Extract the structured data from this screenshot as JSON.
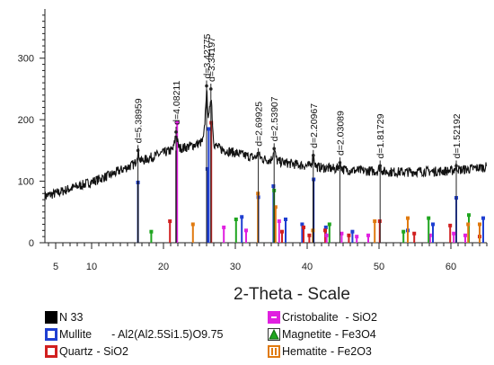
{
  "chart_data": {
    "type": "line",
    "title": "",
    "xlabel": "2-Theta - Scale",
    "ylabel": "",
    "xlim": [
      3.5,
      65
    ],
    "ylim": [
      0,
      380
    ],
    "x_ticks": [
      5,
      10,
      20,
      30,
      40,
      50,
      60
    ],
    "y_ticks": [
      0,
      100,
      200,
      300
    ],
    "grid": false,
    "legend_position": "bottom",
    "pattern_name": "N 33",
    "pattern_profile": [
      [
        3.5,
        76
      ],
      [
        5,
        80
      ],
      [
        7,
        88
      ],
      [
        9,
        95
      ],
      [
        11,
        103
      ],
      [
        13,
        112
      ],
      [
        15,
        123
      ],
      [
        17,
        133
      ],
      [
        19,
        142
      ],
      [
        21,
        150
      ],
      [
        22,
        153
      ],
      [
        23,
        155
      ],
      [
        24,
        158
      ],
      [
        25,
        162
      ],
      [
        26,
        168
      ],
      [
        27,
        160
      ],
      [
        28,
        152
      ],
      [
        30,
        146
      ],
      [
        32,
        140
      ],
      [
        34,
        136
      ],
      [
        36,
        132
      ],
      [
        38,
        128
      ],
      [
        40,
        125
      ],
      [
        42,
        122
      ],
      [
        44,
        120
      ],
      [
        46,
        118
      ],
      [
        48,
        117
      ],
      [
        50,
        116
      ],
      [
        52,
        115
      ],
      [
        54,
        115
      ],
      [
        56,
        116
      ],
      [
        58,
        116
      ],
      [
        60,
        117
      ],
      [
        62,
        119
      ],
      [
        64,
        122
      ],
      [
        65,
        123
      ]
    ],
    "peaks": [
      {
        "two_theta": 16.45,
        "intensity": 150,
        "d": "d=5.38959"
      },
      {
        "two_theta": 21.75,
        "intensity": 180,
        "d": "d=4.08211"
      },
      {
        "two_theta": 26.0,
        "intensity": 255,
        "d": "d=3.42775"
      },
      {
        "two_theta": 26.6,
        "intensity": 250,
        "d": "d=3.34197"
      },
      {
        "two_theta": 33.2,
        "intensity": 145,
        "d": "d=2.69925"
      },
      {
        "two_theta": 35.4,
        "intensity": 153,
        "d": "d=2.53907"
      },
      {
        "two_theta": 40.85,
        "intensity": 142,
        "d": "d=2.20967"
      },
      {
        "two_theta": 44.55,
        "intensity": 130,
        "d": "d=2.03089"
      },
      {
        "two_theta": 50.15,
        "intensity": 125,
        "d": "d=1.81729"
      },
      {
        "two_theta": 60.75,
        "intensity": 125,
        "d": "d=1.52192"
      }
    ],
    "reference_lines": [
      {
        "phase": "Mullite",
        "color": "#1f3fd1",
        "sticks": [
          [
            16.45,
            98
          ],
          [
            26.1,
            120
          ],
          [
            26.3,
            185
          ],
          [
            30.9,
            42
          ],
          [
            33.2,
            74
          ],
          [
            35.3,
            92
          ],
          [
            37.0,
            38
          ],
          [
            39.3,
            30
          ],
          [
            40.9,
            103
          ],
          [
            42.6,
            25
          ],
          [
            46.3,
            18
          ],
          [
            54.0,
            20
          ],
          [
            57.5,
            30
          ],
          [
            60.75,
            73
          ],
          [
            64.5,
            40
          ]
        ]
      },
      {
        "phase": "Quartz",
        "color": "#d11f1f",
        "sticks": [
          [
            20.9,
            35
          ],
          [
            26.65,
            195
          ],
          [
            36.5,
            18
          ],
          [
            39.5,
            25
          ],
          [
            40.3,
            12
          ],
          [
            42.5,
            20
          ],
          [
            45.8,
            12
          ],
          [
            50.1,
            35
          ],
          [
            54.9,
            15
          ],
          [
            59.9,
            28
          ],
          [
            64.0,
            10
          ]
        ]
      },
      {
        "phase": "Cristobalite",
        "color": "#e020e0",
        "sticks": [
          [
            21.9,
            195
          ],
          [
            28.4,
            25
          ],
          [
            31.5,
            20
          ],
          [
            36.1,
            35
          ],
          [
            42.7,
            12
          ],
          [
            44.8,
            15
          ],
          [
            46.9,
            10
          ],
          [
            48.5,
            12
          ],
          [
            57.1,
            12
          ],
          [
            60.4,
            15
          ],
          [
            62.0,
            12
          ]
        ]
      },
      {
        "phase": "Magnetite",
        "color": "#1fa51f",
        "sticks": [
          [
            18.3,
            18
          ],
          [
            30.1,
            38
          ],
          [
            35.4,
            85
          ],
          [
            43.1,
            30
          ],
          [
            53.4,
            18
          ],
          [
            56.9,
            40
          ],
          [
            62.5,
            45
          ]
        ]
      },
      {
        "phase": "Hematite",
        "color": "#e07a10",
        "sticks": [
          [
            24.1,
            30
          ],
          [
            33.15,
            80
          ],
          [
            35.6,
            58
          ],
          [
            40.8,
            20
          ],
          [
            49.4,
            35
          ],
          [
            54.0,
            40
          ],
          [
            62.4,
            30
          ],
          [
            64.0,
            30
          ]
        ]
      }
    ]
  },
  "legend": [
    {
      "label": "N 33",
      "formula": "",
      "color": "#000000",
      "style": "pattern"
    },
    {
      "label": "Mullite",
      "formula": "- Al2(Al2.5Si1.5)O9.75",
      "color": "#1f3fd1",
      "style": "box"
    },
    {
      "label": "Quartz",
      "formula": "- SiO2",
      "color": "#d11f1f",
      "style": "box"
    },
    {
      "label": "Cristobalite",
      "formula": "- SiO2",
      "color": "#e020e0",
      "style": "filled"
    },
    {
      "label": "Magnetite",
      "formula": "- Fe3O4",
      "color": "#1fa51f",
      "style": "triangle"
    },
    {
      "label": "Hematite",
      "formula": "- Fe2O3",
      "color": "#e07a10",
      "style": "bars"
    }
  ]
}
